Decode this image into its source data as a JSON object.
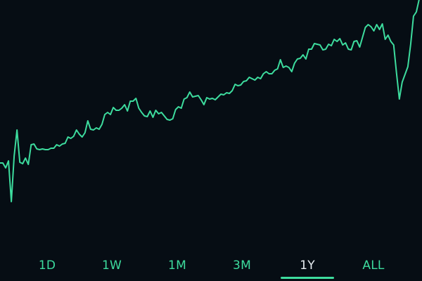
{
  "colors": {
    "background": "#060d14",
    "line": "#3ddc9e",
    "tab_inactive": "#3ddc9e",
    "tab_active": "#e8eef2",
    "tab_underline": "#3ddc9e"
  },
  "tabs": [
    {
      "label": "1D",
      "active": false
    },
    {
      "label": "1W",
      "active": false
    },
    {
      "label": "1M",
      "active": false
    },
    {
      "label": "3M",
      "active": false
    },
    {
      "label": "1Y",
      "active": true
    },
    {
      "label": "ALL",
      "active": false
    }
  ],
  "chart_data": {
    "type": "line",
    "title": "",
    "xlabel": "",
    "ylabel": "",
    "grid": false,
    "ylim": [
      0,
      360
    ],
    "series": [
      {
        "values": [
          128,
          128,
          121,
          131,
          73,
          138,
          175,
          129,
          127,
          135,
          126,
          154,
          155,
          148,
          147,
          148,
          147,
          147,
          149,
          149,
          154,
          152,
          155,
          156,
          165,
          163,
          166,
          175,
          169,
          165,
          171,
          188,
          176,
          175,
          178,
          176,
          183,
          197,
          200,
          197,
          207,
          203,
          203,
          206,
          211,
          202,
          216,
          216,
          220,
          206,
          200,
          195,
          194,
          202,
          193,
          203,
          198,
          200,
          195,
          190,
          189,
          191,
          204,
          208,
          206,
          219,
          221,
          229,
          222,
          223,
          224,
          218,
          211,
          221,
          219,
          220,
          218,
          222,
          226,
          225,
          228,
          227,
          231,
          240,
          238,
          239,
          244,
          245,
          250,
          248,
          246,
          250,
          248,
          255,
          258,
          255,
          255,
          260,
          262,
          275,
          264,
          266,
          264,
          258,
          270,
          276,
          277,
          282,
          276,
          290,
          290,
          298,
          297,
          296,
          289,
          290,
          297,
          295,
          304,
          301,
          305,
          296,
          299,
          290,
          289,
          301,
          302,
          293,
          307,
          321,
          325,
          322,
          316,
          325,
          318,
          326,
          304,
          310,
          301,
          296,
          256,
          219,
          243,
          254,
          265,
          297,
          337,
          343,
          361,
          370
        ]
      }
    ]
  }
}
